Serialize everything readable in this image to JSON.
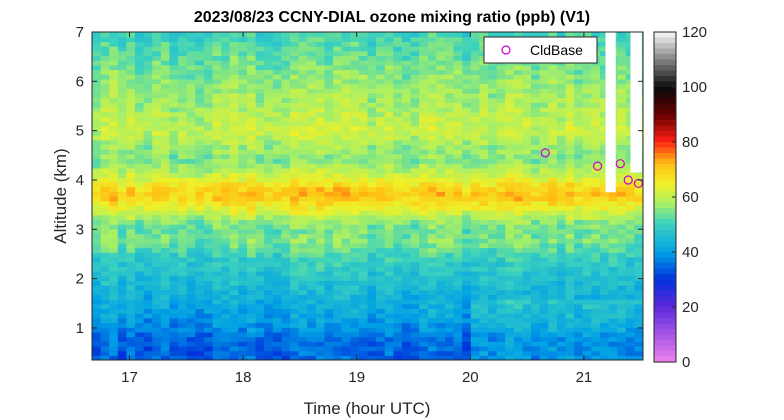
{
  "chart_data": {
    "type": "heatmap",
    "title": "2023/08/23 CCNY-DIAL ozone mixing ratio (ppb) (V1)",
    "xlabel": "Time (hour UTC)",
    "ylabel": "Altitude (km)",
    "xlim": [
      16.67,
      21.52
    ],
    "ylim": [
      0.35,
      7.0
    ],
    "xticks": [
      "17",
      "18",
      "19",
      "20",
      "21"
    ],
    "yticks": [
      "1",
      "2",
      "3",
      "4",
      "5",
      "6",
      "7"
    ],
    "colorbar": {
      "min": 0,
      "max": 120,
      "ticks": [
        "0",
        "20",
        "40",
        "60",
        "80",
        "100",
        "120"
      ]
    },
    "profile": {
      "altitude_km": [
        0.35,
        0.8,
        1.0,
        1.3,
        1.6,
        2.0,
        2.4,
        2.8,
        3.0,
        3.2,
        3.4,
        3.6,
        3.75,
        3.9,
        4.1,
        4.4,
        4.7,
        5.0,
        5.5,
        6.0,
        6.5,
        7.0
      ],
      "ozone_ppb": [
        34,
        35,
        38,
        41,
        43,
        46,
        49,
        55,
        53,
        57,
        63,
        69,
        71,
        67,
        61,
        55,
        57,
        61,
        58,
        56,
        53,
        50
      ]
    },
    "cloud_gaps": [
      {
        "time_range": [
          21.19,
          21.28
        ],
        "altitude_from_km": 3.75
      },
      {
        "time_range": [
          21.41,
          21.51
        ],
        "altitude_from_km": 4.15
      }
    ],
    "series": [
      {
        "name": "CldBase",
        "marker": "circle",
        "color": "#cc00cc",
        "points": [
          {
            "x": 20.66,
            "y": 4.55
          },
          {
            "x": 21.12,
            "y": 4.28
          },
          {
            "x": 21.32,
            "y": 4.33
          },
          {
            "x": 21.39,
            "y": 4.0
          },
          {
            "x": 21.48,
            "y": 3.93
          }
        ]
      }
    ],
    "legend_position": "top-right"
  }
}
